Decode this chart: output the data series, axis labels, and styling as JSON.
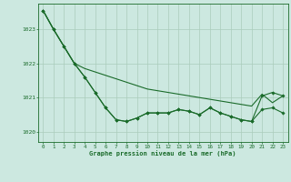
{
  "background_color": "#cce8e0",
  "grid_color": "#aaccbb",
  "line_color": "#1a6b2a",
  "marker_color": "#1a6b2a",
  "xlabel": "Graphe pression niveau de la mer (hPa)",
  "xlim": [
    -0.5,
    23.5
  ],
  "ylim": [
    1019.7,
    1023.75
  ],
  "yticks": [
    1020,
    1021,
    1022,
    1023
  ],
  "xticks": [
    0,
    1,
    2,
    3,
    4,
    5,
    6,
    7,
    8,
    9,
    10,
    11,
    12,
    13,
    14,
    15,
    16,
    17,
    18,
    19,
    20,
    21,
    22,
    23
  ],
  "s1": [
    1023.55,
    1023.0,
    1022.5,
    1022.0,
    1021.85,
    1021.75,
    1021.65,
    1021.55,
    1021.45,
    1021.35,
    1021.25,
    1021.2,
    1021.15,
    1021.1,
    1021.05,
    1021.0,
    1020.95,
    1020.9,
    1020.85,
    1020.8,
    1020.75,
    1021.1,
    1020.85,
    1021.05
  ],
  "s2": [
    1023.55,
    1023.0,
    1022.5,
    1022.0,
    1021.6,
    1021.15,
    1020.7,
    1020.35,
    1020.3,
    1020.4,
    1020.55,
    1020.55,
    1020.55,
    1020.65,
    1020.6,
    1020.5,
    1020.7,
    1020.55,
    1020.45,
    1020.35,
    1020.3,
    1020.65,
    1020.7,
    1020.55
  ],
  "s3": [
    1023.55,
    1023.0,
    1022.5,
    1022.0,
    1021.6,
    1021.15,
    1020.7,
    1020.35,
    1020.3,
    1020.4,
    1020.55,
    1020.55,
    1020.55,
    1020.65,
    1020.6,
    1020.5,
    1020.7,
    1020.55,
    1020.45,
    1020.35,
    1020.3,
    1021.05,
    1021.15,
    1021.05
  ]
}
